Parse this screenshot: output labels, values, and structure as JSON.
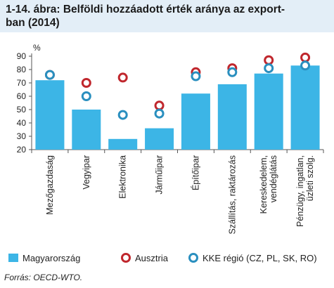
{
  "figure": {
    "title": "1-14. ábra: Belföldi hozzáadott érték aránya az export-ban (2014)",
    "title_line1": "1-14. ábra: Belföldi hozzáadott érték aránya az export-",
    "title_line2": "ban (2014)",
    "source": "Forrás: OECD-WTO.",
    "header_bg": "#e3eef7"
  },
  "chart_data": {
    "type": "bar",
    "ylabel": "%",
    "ylim": [
      20,
      90
    ],
    "yticks": [
      20,
      30,
      40,
      50,
      60,
      70,
      80,
      90
    ],
    "grid": false,
    "legend_position": "bottom",
    "categories": [
      [
        "Mezőgazdaság"
      ],
      [
        "Vegyipar"
      ],
      [
        "Elektronika"
      ],
      [
        "Járműipar"
      ],
      [
        "Építőipar"
      ],
      [
        "Szállítás, raktározás"
      ],
      [
        "Kereskedelem,",
        "vendéglátás"
      ],
      [
        "Pénzügy, ingatlan,",
        "üzleti szolg."
      ]
    ],
    "series": [
      {
        "name": "Magyarország",
        "kind": "bar",
        "color": "#3cb5e6",
        "values": [
          72,
          50,
          28,
          36,
          62,
          69,
          77,
          83
        ]
      },
      {
        "name": "Ausztria",
        "kind": "marker",
        "color": "#c0272d",
        "values": [
          76,
          70,
          74,
          53,
          78,
          81,
          87,
          89
        ]
      },
      {
        "name": "KKE régió (CZ, PL, SK, RO)",
        "kind": "marker",
        "color": "#2a8fbf",
        "values": [
          76,
          60,
          46,
          47,
          75,
          78,
          81,
          83
        ]
      }
    ]
  }
}
